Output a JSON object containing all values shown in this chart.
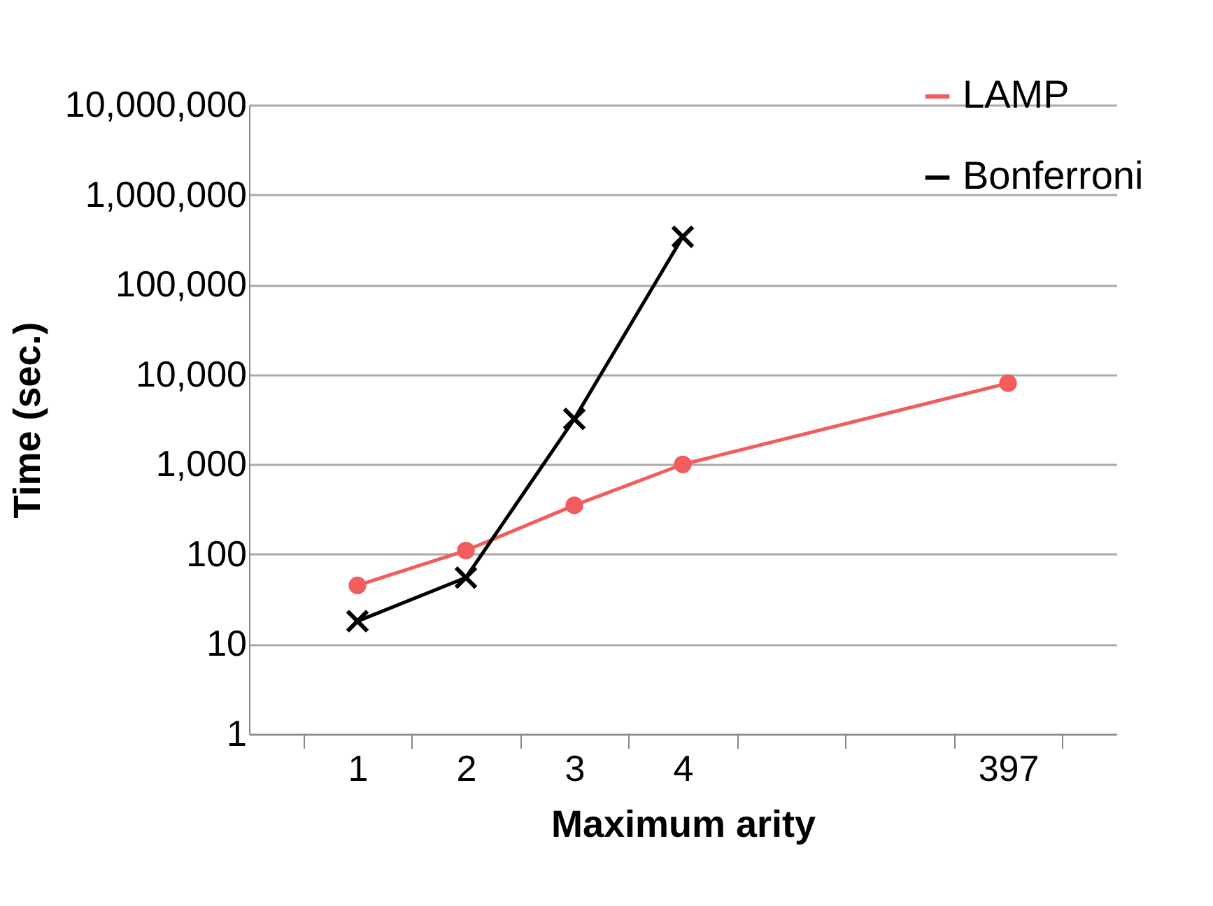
{
  "chart_data": {
    "type": "line",
    "xlabel": "Maximum arity",
    "ylabel": "Time  (sec.)",
    "categories": [
      "1",
      "2",
      "3",
      "4",
      null,
      null,
      "397"
    ],
    "series": [
      {
        "name": "LAMP",
        "color": "#f25c5c",
        "marker": "circle",
        "values": [
          45,
          110,
          350,
          1000,
          null,
          null,
          8000
        ]
      },
      {
        "name": "Bonferroni",
        "color": "#000000",
        "marker": "cross",
        "values": [
          18,
          55,
          3200,
          340000,
          null,
          null,
          null
        ]
      }
    ],
    "log": "y",
    "ylim": [
      1,
      10000000
    ],
    "yticks": [
      1,
      10,
      100,
      {
        "value": 1000,
        "label": "1,000"
      },
      {
        "value": 10000,
        "label": "10,000"
      },
      {
        "value": 100000,
        "label": "100,000"
      },
      {
        "value": 1000000,
        "label": "1,000,000"
      },
      {
        "value": 10000000,
        "label": "10,000,000"
      }
    ],
    "grid": "y",
    "legend": "top right"
  }
}
